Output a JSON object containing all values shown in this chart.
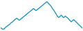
{
  "values": [
    3.0,
    2.8,
    2.6,
    2.5,
    2.7,
    3.0,
    3.3,
    3.5,
    3.8,
    4.0,
    4.2,
    4.5,
    4.8,
    5.0,
    5.2,
    5.5,
    5.8,
    6.1,
    6.3,
    6.5,
    6.3,
    6.0,
    5.8,
    6.0,
    6.3,
    6.5,
    6.8,
    7.0,
    7.3,
    7.5,
    7.8,
    8.0,
    8.3,
    8.5,
    8.8,
    9.0,
    9.3,
    9.5,
    9.8,
    10.0,
    9.8,
    9.5,
    9.3,
    9.5,
    9.8,
    10.0,
    10.3,
    10.5,
    10.8,
    11.0,
    11.3,
    11.5,
    11.8,
    12.0,
    12.3,
    12.5,
    12.2,
    11.8,
    11.5,
    11.2,
    10.8,
    10.3,
    9.8,
    9.5,
    9.0,
    8.5,
    8.0,
    7.5,
    7.0,
    6.8,
    7.0,
    7.3,
    7.6,
    7.3,
    7.0,
    6.7,
    7.0,
    7.3,
    7.0,
    6.8,
    6.5,
    6.2,
    5.8,
    5.5,
    5.2,
    5.5,
    5.8,
    6.0,
    5.7,
    5.4,
    5.1,
    4.8,
    4.5,
    4.2,
    3.9,
    3.6,
    3.3,
    3.0
  ],
  "line_color": "#2196c8",
  "background_color": "#ffffff",
  "linewidth": 1.0
}
